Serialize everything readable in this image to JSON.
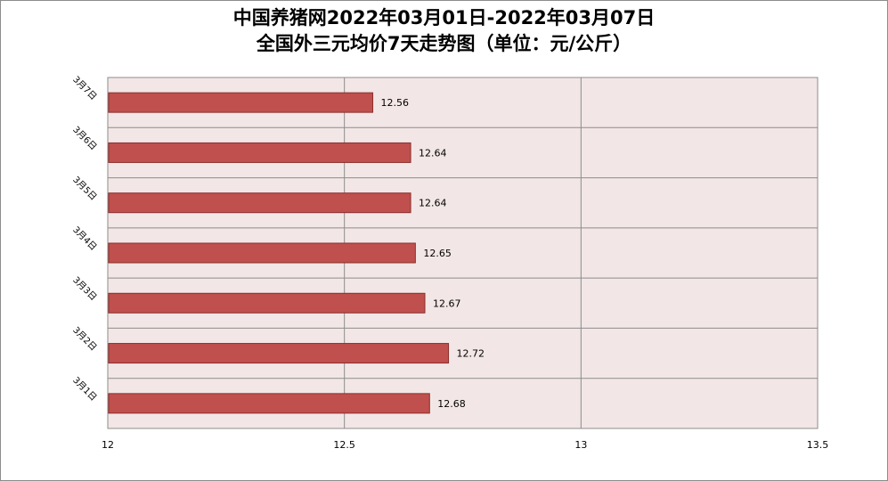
{
  "chart_data": {
    "type": "bar",
    "orientation": "horizontal",
    "title": "中国养猪网2022年03月01日-2022年03月07日",
    "subtitle": "全国外三元均价7天走势图（单位：元/公斤）",
    "categories": [
      "3月1日",
      "3月2日",
      "3月3日",
      "3月4日",
      "3月5日",
      "3月6日",
      "3月7日"
    ],
    "values": [
      12.68,
      12.72,
      12.67,
      12.65,
      12.64,
      12.64,
      12.56
    ],
    "value_labels": [
      "12.68",
      "12.72",
      "12.67",
      "12.65",
      "12.64",
      "12.64",
      "12.56"
    ],
    "xlim": [
      12,
      13.5
    ],
    "x_ticks": [
      12,
      12.5,
      13,
      13.5
    ],
    "x_tick_labels": [
      "12",
      "12.5",
      "13",
      "13.5"
    ],
    "xlabel": "",
    "ylabel": "",
    "grid": true,
    "legend": "none",
    "colors": {
      "bar": "#C0504D",
      "bar_border": "#8B2E2C",
      "plot_background": "#F2E7E6",
      "grid": "#8C8C8C"
    }
  }
}
